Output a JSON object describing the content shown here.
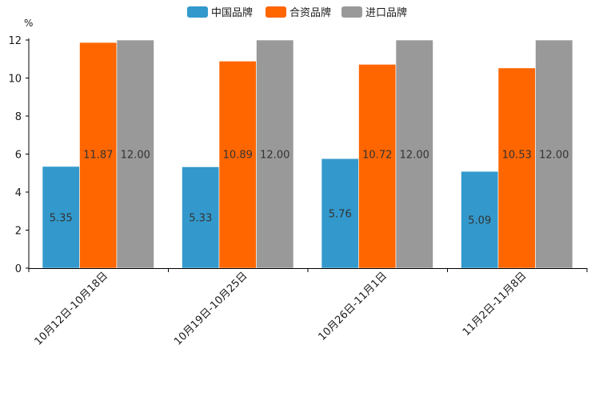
{
  "chart_data": {
    "type": "bar",
    "title": "",
    "xlabel": "",
    "ylabel": "%",
    "ylim": [
      0,
      12
    ],
    "yticks": [
      0,
      2,
      4,
      6,
      8,
      10,
      12
    ],
    "grid": false,
    "legend_position": "top-center",
    "categories": [
      "10月12日-10月18日",
      "10月19日-10月25日",
      "10月26日-11月1日",
      "11月2日-11月8日"
    ],
    "series": [
      {
        "name": "中国品牌",
        "color": "#3399cc",
        "values": [
          5.35,
          5.33,
          5.76,
          5.09
        ],
        "labels": [
          "5.35",
          "5.33",
          "5.76",
          "5.09"
        ]
      },
      {
        "name": "合资品牌",
        "color": "#ff6600",
        "values": [
          11.87,
          10.89,
          10.72,
          10.53
        ],
        "labels": [
          "11.87",
          "10.89",
          "10.72",
          "10.53"
        ]
      },
      {
        "name": "进口品牌",
        "color": "#999999",
        "values": [
          12.0,
          12.0,
          12.0,
          12.0
        ],
        "labels": [
          "12.00",
          "12.00",
          "12.00",
          "12.00"
        ]
      }
    ]
  }
}
